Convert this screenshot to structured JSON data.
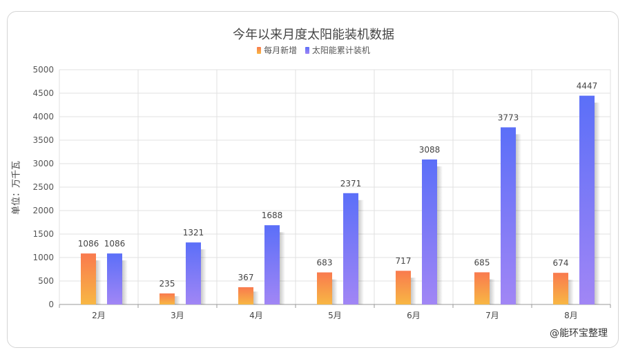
{
  "chart_data": {
    "type": "bar",
    "title": "今年以来月度太阳能装机数据",
    "ylabel": "单位：万千瓦",
    "xlabel": "",
    "categories": [
      "2月",
      "3月",
      "4月",
      "5月",
      "6月",
      "7月",
      "8月"
    ],
    "series": [
      {
        "name": "每月新增",
        "values": [
          1086,
          235,
          367,
          683,
          717,
          685,
          674
        ],
        "color_top": "#f97a4e",
        "color_bottom": "#f8b744"
      },
      {
        "name": "太阳能累计装机",
        "values": [
          1086,
          1321,
          1688,
          2371,
          3088,
          3773,
          4447
        ],
        "color_top": "#5b6ff8",
        "color_bottom": "#a186f5"
      }
    ],
    "ylim": [
      0,
      5000
    ],
    "yticks": [
      0,
      500,
      1000,
      1500,
      2000,
      2500,
      3000,
      3500,
      4000,
      4500,
      5000
    ],
    "grid": true,
    "legend_position": "top-center",
    "data_labels": true
  },
  "source_note": "@能环宝整理"
}
